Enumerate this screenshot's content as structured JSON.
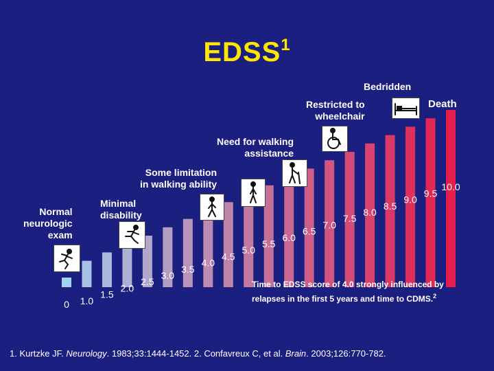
{
  "title": "EDSS",
  "title_superscript": "1",
  "labels": {
    "bedridden": "Bedridden",
    "death": "Death",
    "wheelchair": "Restricted to\nwheelchair",
    "walking_assist": "Need for walking\nassistance",
    "some_limitation": "Some limitation\nin walking ability",
    "minimal": "Minimal\ndisability",
    "normal": "Normal\nneurologic\nexam"
  },
  "note": {
    "text": "Time to EDSS score of 4.0 strongly influenced by relapses in the first 5 years and time to CDMS.",
    "superscript": "2"
  },
  "reference": {
    "part1": "1. Kurtzke JF. ",
    "journal1": "Neurology",
    "part2": ". 1983;33:1444-1452. 2. Confavreux C, et al. ",
    "journal2": "Brain",
    "part3": ". 2003;126:770-782."
  },
  "icons": [
    "running-person-icon",
    "running-person-icon",
    "walking-person-icon",
    "walking-person-icon",
    "walking-with-cane-icon",
    "wheelchair-icon",
    "bed-icon"
  ],
  "chart_data": {
    "type": "bar",
    "categories": [
      "0",
      "1.0",
      "1.5",
      "2.0",
      "2.5",
      "3.0",
      "3.5",
      "4.0",
      "4.5",
      "5.0",
      "5.5",
      "6.0",
      "6.5",
      "7.0",
      "7.5",
      "8.0",
      "8.5",
      "9.0",
      "9.5",
      "10.0"
    ],
    "values": [
      0,
      1.0,
      1.5,
      2.0,
      2.5,
      3.0,
      3.5,
      4.0,
      4.5,
      5.0,
      5.5,
      6.0,
      6.5,
      7.0,
      7.5,
      8.0,
      8.5,
      9.0,
      9.5,
      10.0
    ],
    "colors": {
      "low": "#9fd4f5",
      "high": "#e61e4b"
    }
  }
}
